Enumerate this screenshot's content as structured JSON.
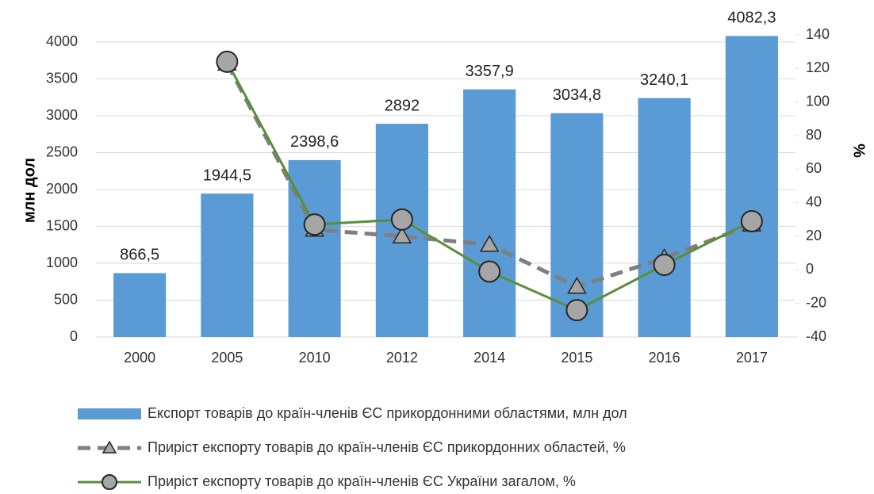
{
  "chart_data": {
    "type": "bar",
    "categories": [
      "2000",
      "2005",
      "2010",
      "2012",
      "2014",
      "2015",
      "2016",
      "2017"
    ],
    "ylabel": "млн дол",
    "y2label": "%",
    "ylim": [
      0,
      4000
    ],
    "yticks": [
      0,
      500,
      1000,
      1500,
      2000,
      2500,
      3000,
      3500,
      4000
    ],
    "y2lim": [
      -40,
      140
    ],
    "y2ticks": [
      -40,
      -20,
      0,
      20,
      40,
      60,
      80,
      100,
      120,
      140
    ],
    "grid": true,
    "legend": "bottom",
    "series": [
      {
        "name": "Експорт товарів до країн-членів ЄС прикордонними областями, млн дол",
        "type": "bar",
        "color": "#5b9bd5",
        "values": [
          866.5,
          1944.5,
          2398.6,
          2892,
          3357.9,
          3034.8,
          3240.1,
          4082.3
        ],
        "value_labels": [
          "866,5",
          "1944,5",
          "2398,6",
          "2892",
          "3357,9",
          "3034,8",
          "3240,1",
          "4082,3"
        ]
      },
      {
        "name": "Приріст експорту товарів до країн-членів ЄС прикордонних областей, %",
        "type": "line",
        "axis": "y2",
        "color": "#7f7f7f",
        "marker": "triangle",
        "dashed": true,
        "values": [
          null,
          123,
          24,
          20,
          15,
          -10,
          7,
          27
        ]
      },
      {
        "name": "Приріст експорту товарів до країн-членів ЄС України загалом, %",
        "type": "line",
        "axis": "y2",
        "color": "#5a8f3a",
        "marker": "circle",
        "dashed": false,
        "values": [
          null,
          124,
          27,
          30,
          -1,
          -24,
          3,
          29
        ]
      }
    ]
  }
}
